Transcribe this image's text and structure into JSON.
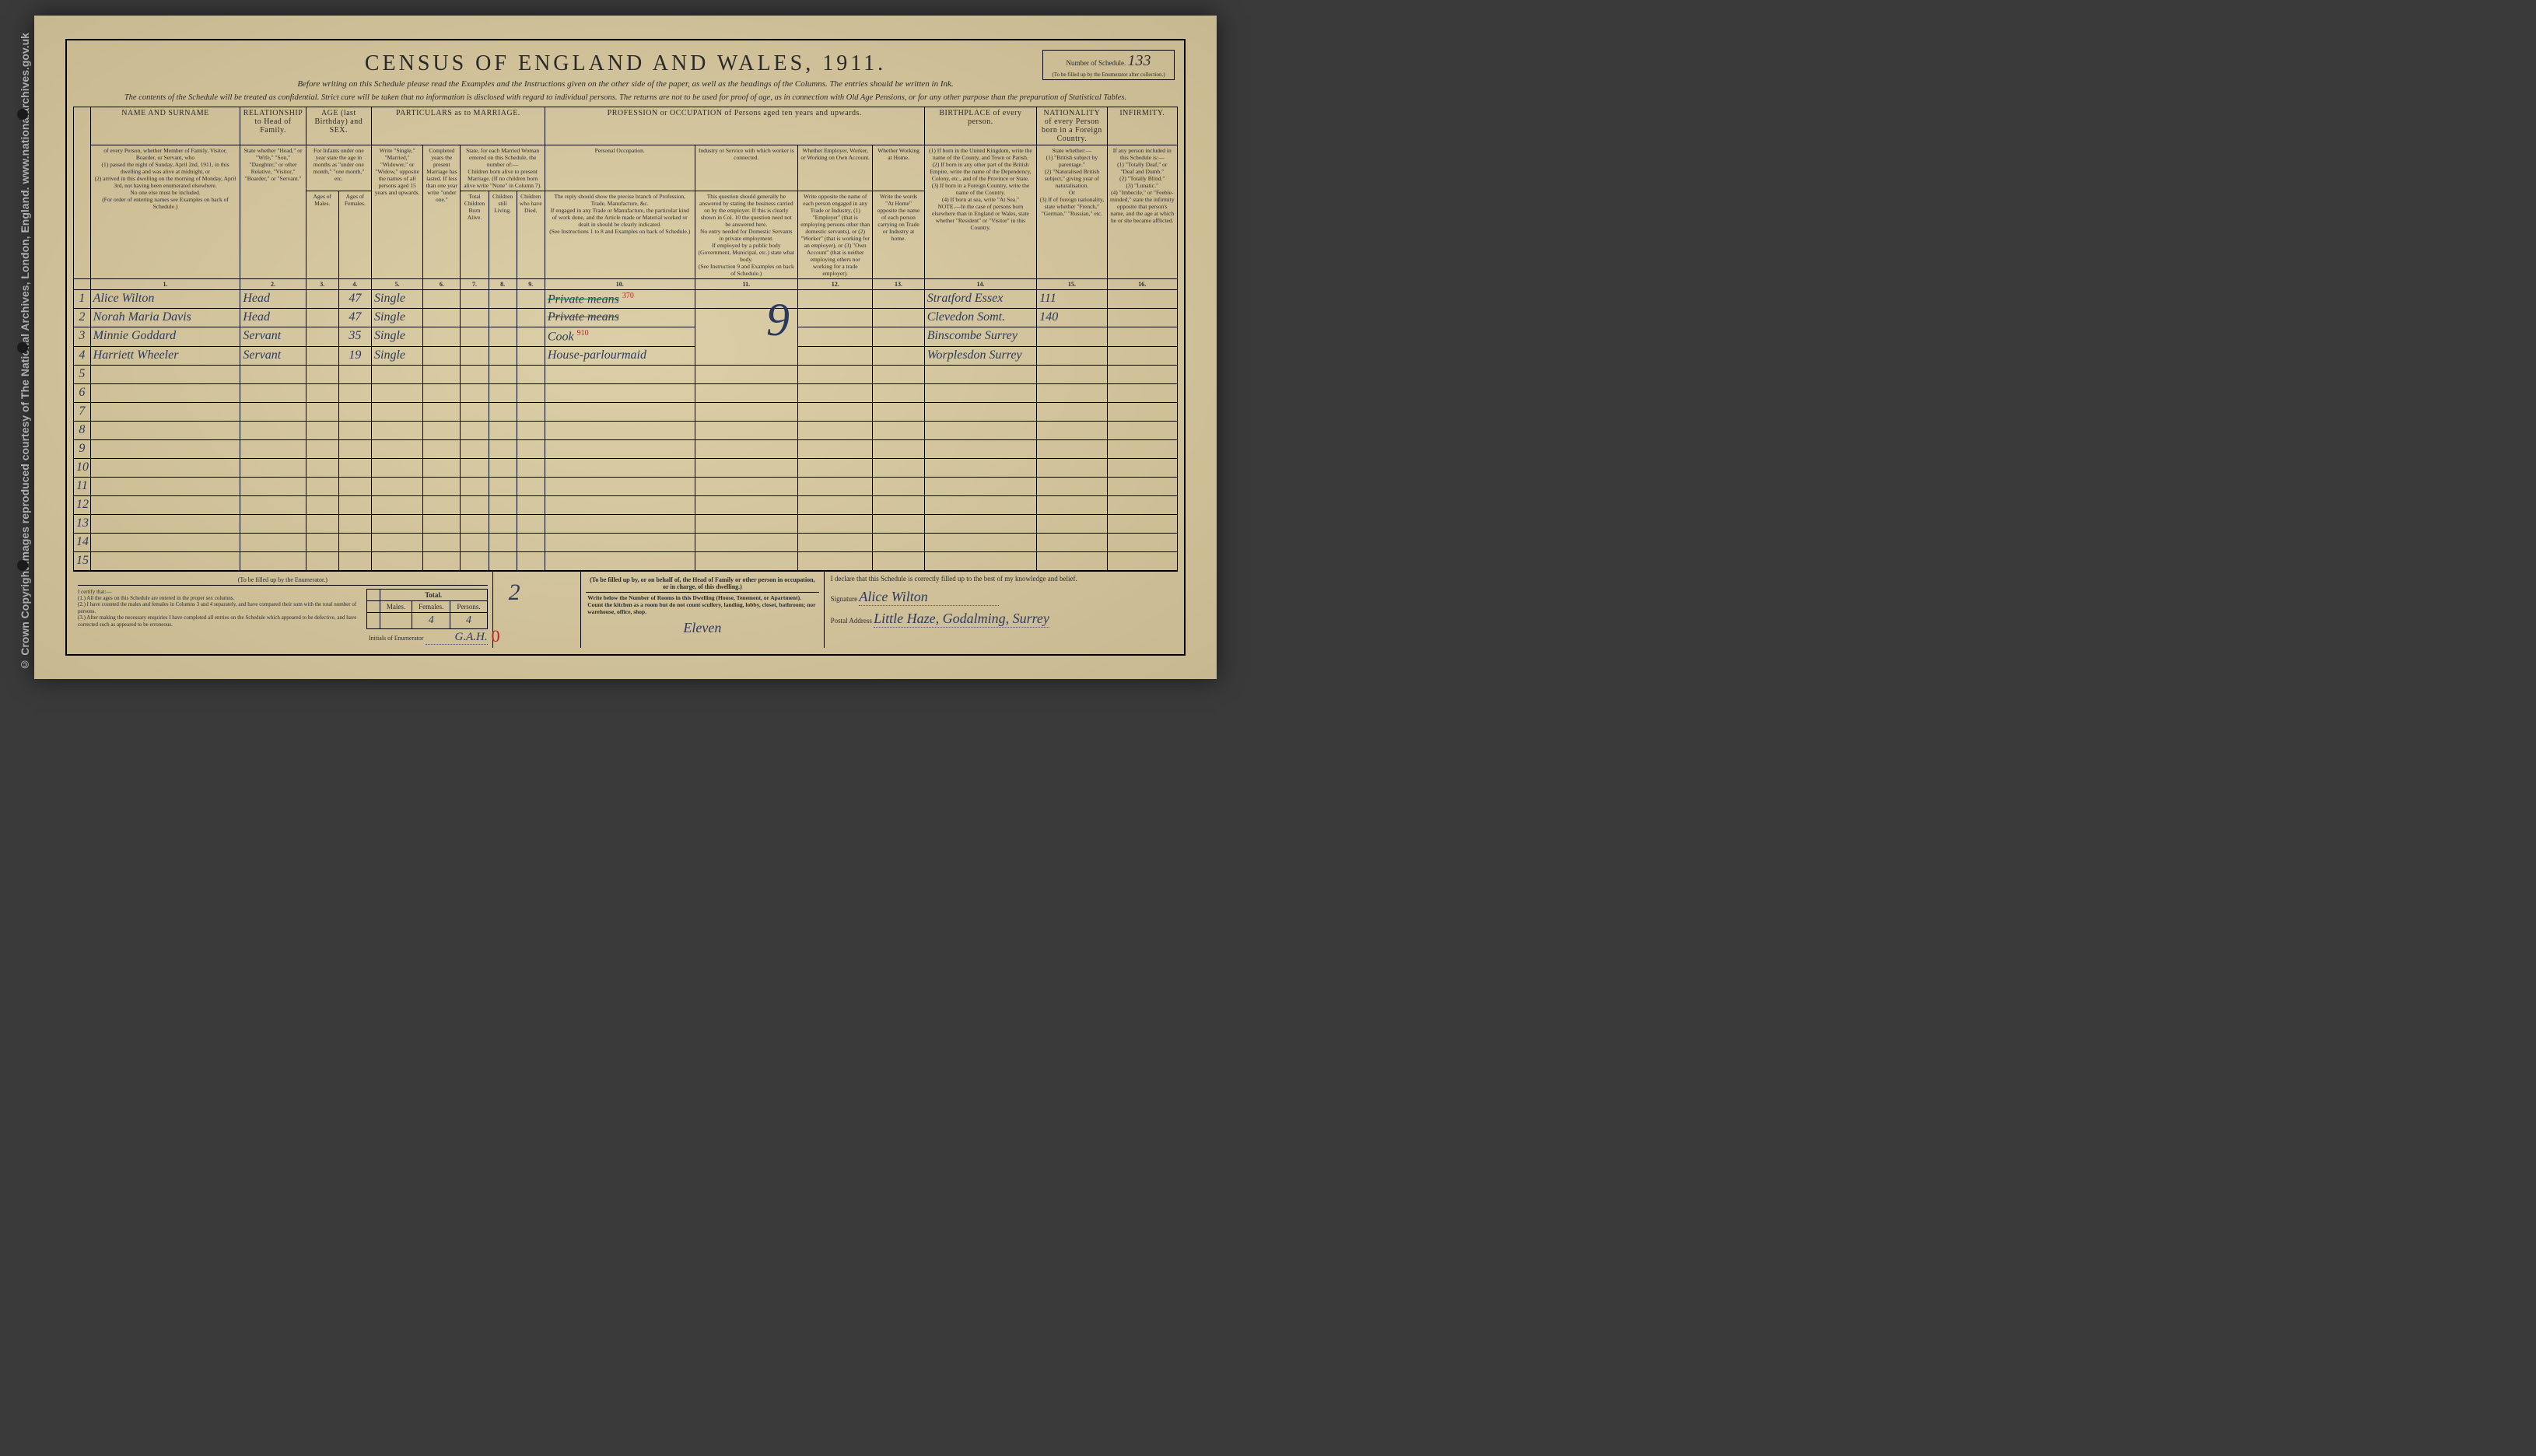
{
  "watermark": "© Crown Copyright Images reproduced courtesy of The National Archives, London, England. www.nationalarchives.gov.uk",
  "title": "CENSUS OF ENGLAND AND WALES, 1911.",
  "schedule_label": "Number of Schedule.",
  "schedule_number": "133",
  "schedule_note": "(To be filled up by the Enumerator after collection.)",
  "subtitle": "Before writing on this Schedule please read the Examples and the Instructions given on the other side of the paper, as well as the headings of the Columns. The entries should be written in Ink.",
  "confidential": "The contents of the Schedule will be treated as confidential. Strict care will be taken that no information is disclosed with regard to individual persons. The returns are not to be used for proof of age, as in connection with Old Age Pensions, or for any other purpose than the preparation of Statistical Tables.",
  "headers": {
    "name": "NAME AND SURNAME",
    "relationship": "RELATIONSHIP to Head of Family.",
    "age": "AGE (last Birthday) and SEX.",
    "marriage": "PARTICULARS as to MARRIAGE.",
    "profession": "PROFESSION or OCCUPATION of Persons aged ten years and upwards.",
    "birthplace": "BIRTHPLACE of every person.",
    "nationality": "NATIONALITY of every Person born in a Foreign Country.",
    "infirmity": "INFIRMITY."
  },
  "instructions": {
    "name": "of every Person, whether Member of Family, Visitor, Boarder, or Servant, who\n(1) passed the night of Sunday, April 2nd, 1911, in this dwelling and was alive at midnight, or\n(2) arrived in this dwelling on the morning of Monday, April 3rd, not having been enumerated elsewhere.\nNo one else must be included.\n(For order of entering names see Examples on back of Schedule.)",
    "relationship": "State whether \"Head,\" or \"Wife,\" \"Son,\" \"Daughter,\" or other Relative, \"Visitor,\" \"Boarder,\" or \"Servant.\"",
    "age": "For Infants under one year state the age in months as \"under one month,\" \"one month,\" etc.",
    "age_males": "Ages of Males.",
    "age_females": "Ages of Females.",
    "marriage_status": "Write \"Single,\" \"Married,\" \"Widower,\" or \"Widow,\" opposite the names of all persons aged 15 years and upwards.",
    "marriage_years": "Completed years the present Marriage has lasted. If less than one year write \"under one.\"",
    "marriage_children_head": "State, for each Married Woman entered on this Schedule, the number of:—",
    "marriage_children_note": "Children born alive to present Marriage. (If no children born alive write \"None\" in Column 7).",
    "children_total": "Total Children Born Alive.",
    "children_living": "Children still Living.",
    "children_died": "Children who have Died.",
    "personal_occ": "Personal Occupation.",
    "personal_occ_text": "The reply should show the precise branch of Profession, Trade, Manufacture, &c.\nIf engaged in any Trade or Manufacture, the particular kind of work done, and the Article made or Material worked or dealt in should be clearly indicated.\n(See Instructions 1 to 8 and Examples on back of Schedule.)",
    "industry": "Industry or Service with which worker is connected.",
    "industry_text": "This question should generally be answered by stating the business carried on by the employer. If this is clearly shown in Col. 10 the question need not be answered here.\nNo entry needed for Domestic Servants in private employment.\nIf employed by a public body (Government, Municipal, etc.) state what body.\n(See Instruction 9 and Examples on back of Schedule.)",
    "employer": "Whether Employer, Worker, or Working on Own Account.",
    "employer_text": "Write opposite the name of each person engaged in any Trade or Industry, (1) \"Employer\" (that is employing persons other than domestic servants), or (2) \"Worker\" (that is working for an employer), or (3) \"Own Account\" (that is neither employing others nor working for a trade employer).",
    "at_home": "Whether Working at Home.",
    "at_home_text": "Write the words \"At Home\" opposite the name of each person carrying on Trade or Industry at home.",
    "birthplace_text": "(1) If born in the United Kingdom, write the name of the County, and Town or Parish.\n(2) If born in any other part of the British Empire, write the name of the Dependency, Colony, etc., and of the Province or State.\n(3) If born in a Foreign Country, write the name of the Country.\n(4) If born at sea, write \"At Sea.\"\nNOTE.—In the case of persons born elsewhere than in England or Wales, state whether \"Resident\" or \"Visitor\" in this Country.",
    "nationality_text": "State whether:—\n(1) \"British subject by parentage.\"\n(2) \"Naturalised British subject,\" giving year of naturalisation.\nOr\n(3) If of foreign nationality, state whether \"French,\" \"German,\" \"Russian,\" etc.",
    "infirmity_text": "If any person included in this Schedule is:—\n(1) \"Totally Deaf,\" or \"Deaf and Dumb.\"\n(2) \"Totally Blind.\"\n(3) \"Lunatic.\"\n(4) \"Imbecile,\" or \"Feeble-minded,\" state the infirmity opposite that person's name, and the age at which he or she became afflicted."
  },
  "colnums": [
    "1.",
    "2.",
    "3.",
    "4.",
    "5.",
    "6.",
    "7.",
    "8.",
    "9.",
    "10.",
    "11.",
    "12.",
    "13.",
    "14.",
    "15.",
    "16."
  ],
  "rows": [
    {
      "n": "1",
      "name": "Alice Wilton",
      "rel": "Head",
      "age_m": "",
      "age_f": "47",
      "mar": "Single",
      "occ": "Private means",
      "occ_code": "370",
      "birthplace": "Stratford Essex",
      "code": "111"
    },
    {
      "n": "2",
      "name": "Norah Maria Davis",
      "rel": "Head",
      "age_m": "",
      "age_f": "47",
      "mar": "Single",
      "occ": "Private means",
      "occ_code": "",
      "birthplace": "Clevedon Somt.",
      "code": "140"
    },
    {
      "n": "3",
      "name": "Minnie Goddard",
      "rel": "Servant",
      "age_m": "",
      "age_f": "35",
      "mar": "Single",
      "occ": "Cook",
      "occ_code": "910",
      "birthplace": "Binscombe Surrey",
      "code": ""
    },
    {
      "n": "4",
      "name": "Harriett Wheeler",
      "rel": "Servant",
      "age_m": "",
      "age_f": "19",
      "mar": "Single",
      "occ": "House-parlourmaid",
      "occ_code": "",
      "birthplace": "Worplesdon Surrey",
      "code": ""
    },
    {
      "n": "5"
    },
    {
      "n": "6"
    },
    {
      "n": "7"
    },
    {
      "n": "8"
    },
    {
      "n": "9"
    },
    {
      "n": "10"
    },
    {
      "n": "11"
    },
    {
      "n": "12"
    },
    {
      "n": "13"
    },
    {
      "n": "14"
    },
    {
      "n": "15"
    }
  ],
  "footer": {
    "enum_label": "(To be filled up by the Enumerator.)",
    "family_label": "(To be filled up by, or on behalf of, the Head of Family or other person in occupation, or in charge, of this dwelling.)",
    "certify": "I certify that:—\n(1.) All the ages on this Schedule are entered in the proper sex columns.\n(2.) I have counted the males and females in Columns 3 and 4 separately, and have compared their sum with the total number of persons.\n(3.) After making the necessary enquiries I have completed all entries on the Schedule which appeared to be defective, and have corrected such as appeared to be erroneous.",
    "initials_label": "Initials of Enumerator",
    "initials": "G.A.H.",
    "totals_header": "Total.",
    "males_label": "Males.",
    "females_label": "Females.",
    "persons_label": "Persons.",
    "males": "",
    "females": "4",
    "persons": "4",
    "red_zero": "0",
    "green_mark": "2",
    "rooms_text": "Write below the Number of Rooms in this Dwelling (House, Tenement, or Apartment). Count the kitchen as a room but do not count scullery, landing, lobby, closet, bathroom; nor warehouse, office, shop.",
    "rooms": "Eleven",
    "declare": "I declare that this Schedule is correctly filled up to the best of my knowledge and belief.",
    "sig_label": "Signature",
    "signature": "Alice Wilton",
    "addr_label": "Postal Address",
    "address": "Little Haze, Godalming, Surrey",
    "big_nine": "9"
  }
}
